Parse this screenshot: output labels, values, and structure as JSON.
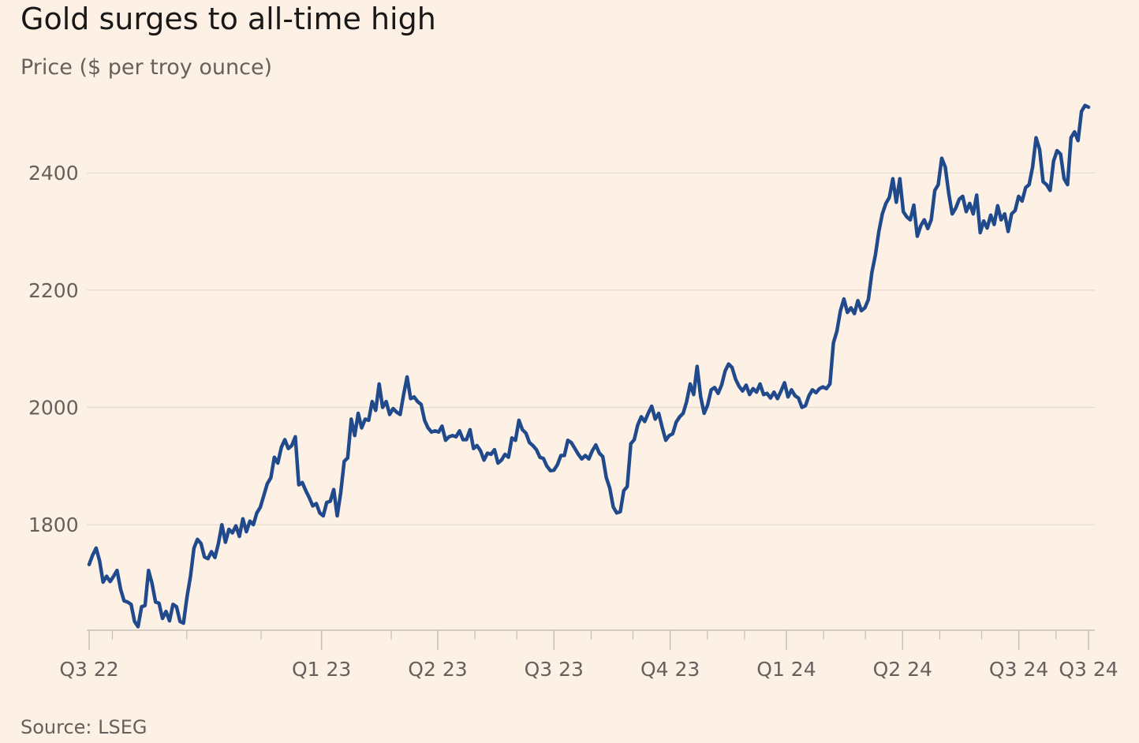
{
  "chart_data": {
    "type": "line",
    "title": "Gold surges to all-time high",
    "subtitle": "Price ($ per troy ounce)",
    "source": "Source: LSEG",
    "xlabel": "",
    "ylabel": "Price ($ per troy ounce)",
    "ylim": [
      1620,
      2520
    ],
    "yticks": [
      1800,
      2000,
      2200,
      2400
    ],
    "grid": true,
    "line_color": "#204a8c",
    "x_tick_labels": [
      {
        "label": "Q3 22",
        "t": 0.0
      },
      {
        "label": "Q1 23",
        "t": 0.5
      },
      {
        "label": "Q2 23",
        "t": 0.75
      },
      {
        "label": "Q3 23",
        "t": 1.0
      },
      {
        "label": "Q4 23",
        "t": 1.25
      },
      {
        "label": "Q1 24",
        "t": 1.5
      },
      {
        "label": "Q2 24",
        "t": 1.75
      },
      {
        "label": "Q3 24",
        "t": 2.0
      },
      {
        "label": "Q3 24",
        "t": 2.15
      }
    ],
    "minor_ticks": [
      0.05,
      0.21,
      0.37,
      0.65,
      0.83,
      0.92,
      1.08,
      1.17,
      1.33,
      1.41,
      1.58,
      1.67,
      1.83,
      1.92,
      2.08
    ],
    "series": [
      {
        "name": "Gold price",
        "x_start": 0.0,
        "x_end": 2.15,
        "values": [
          1732,
          1748,
          1760,
          1738,
          1702,
          1712,
          1703,
          1712,
          1722,
          1690,
          1670,
          1668,
          1664,
          1635,
          1626,
          1660,
          1662,
          1722,
          1700,
          1668,
          1666,
          1640,
          1652,
          1636,
          1664,
          1660,
          1635,
          1632,
          1676,
          1712,
          1760,
          1775,
          1768,
          1745,
          1742,
          1754,
          1744,
          1768,
          1800,
          1770,
          1792,
          1786,
          1798,
          1780,
          1810,
          1788,
          1806,
          1800,
          1820,
          1830,
          1850,
          1870,
          1880,
          1915,
          1905,
          1932,
          1945,
          1930,
          1935,
          1950,
          1868,
          1872,
          1858,
          1846,
          1832,
          1836,
          1820,
          1815,
          1838,
          1840,
          1860,
          1815,
          1855,
          1908,
          1914,
          1980,
          1952,
          1990,
          1965,
          1980,
          1978,
          2010,
          1995,
          2040,
          2000,
          2010,
          1988,
          1998,
          1992,
          1988,
          2022,
          2052,
          2015,
          2018,
          2010,
          2005,
          1978,
          1965,
          1958,
          1960,
          1958,
          1968,
          1944,
          1950,
          1952,
          1950,
          1960,
          1945,
          1945,
          1962,
          1930,
          1935,
          1926,
          1910,
          1922,
          1920,
          1928,
          1905,
          1910,
          1920,
          1915,
          1948,
          1944,
          1978,
          1962,
          1956,
          1940,
          1935,
          1928,
          1915,
          1913,
          1900,
          1892,
          1893,
          1902,
          1918,
          1918,
          1944,
          1940,
          1930,
          1920,
          1912,
          1918,
          1912,
          1926,
          1936,
          1922,
          1916,
          1880,
          1862,
          1830,
          1820,
          1822,
          1858,
          1865,
          1938,
          1945,
          1970,
          1984,
          1976,
          1990,
          2002,
          1980,
          1990,
          1966,
          1944,
          1952,
          1955,
          1975,
          1984,
          1990,
          2010,
          2040,
          2022,
          2070,
          2018,
          1990,
          2004,
          2030,
          2034,
          2024,
          2038,
          2062,
          2074,
          2068,
          2048,
          2036,
          2028,
          2038,
          2022,
          2032,
          2026,
          2040,
          2022,
          2024,
          2016,
          2026,
          2015,
          2028,
          2042,
          2018,
          2030,
          2020,
          2016,
          2000,
          2003,
          2020,
          2030,
          2025,
          2032,
          2035,
          2032,
          2040,
          2110,
          2130,
          2165,
          2185,
          2162,
          2170,
          2160,
          2182,
          2165,
          2170,
          2184,
          2230,
          2260,
          2300,
          2330,
          2348,
          2358,
          2390,
          2350,
          2390,
          2334,
          2325,
          2320,
          2345,
          2292,
          2310,
          2320,
          2305,
          2320,
          2370,
          2380,
          2425,
          2410,
          2365,
          2330,
          2340,
          2355,
          2360,
          2334,
          2348,
          2330,
          2362,
          2298,
          2318,
          2306,
          2328,
          2312,
          2344,
          2320,
          2330,
          2300,
          2330,
          2336,
          2360,
          2352,
          2375,
          2380,
          2410,
          2460,
          2440,
          2385,
          2380,
          2370,
          2420,
          2438,
          2432,
          2390,
          2380,
          2460,
          2470,
          2455,
          2505,
          2515,
          2512
        ]
      }
    ]
  }
}
